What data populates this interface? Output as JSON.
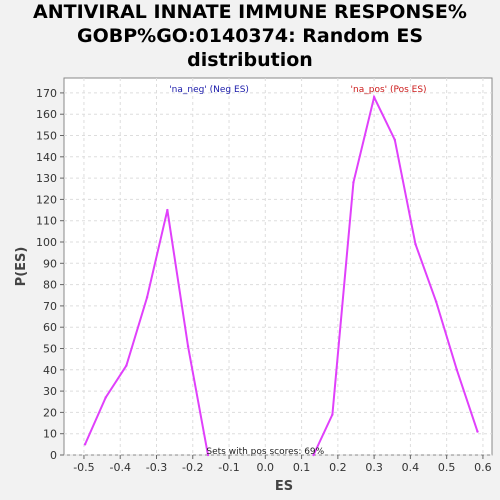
{
  "chart_data": {
    "type": "line",
    "title_lines": [
      "ANTIVIRAL INNATE IMMUNE RESPONSE%",
      "GOBP%GO:0140374: Random ES",
      "distribution"
    ],
    "xlabel": "ES",
    "ylabel": "P(ES)",
    "xlim": [
      -0.555,
      0.625
    ],
    "ylim": [
      0,
      177
    ],
    "x_ticks": [
      -0.5,
      -0.4,
      -0.3,
      -0.2,
      -0.1,
      0.0,
      0.1,
      0.2,
      0.3,
      0.4,
      0.5,
      0.6
    ],
    "x_tick_labels": [
      "-0.5",
      "-0.4",
      "-0.3",
      "-0.2",
      "-0.1",
      "0.0",
      "0.1",
      "0.2",
      "0.3",
      "0.4",
      "0.5",
      "0.6"
    ],
    "y_ticks": [
      0,
      10,
      20,
      30,
      40,
      50,
      60,
      70,
      80,
      90,
      100,
      110,
      120,
      130,
      140,
      150,
      160,
      170
    ],
    "grid": true,
    "series": [
      {
        "name": "'na_neg' (Neg ES)",
        "color": "#e040fb",
        "x": [
          -0.497,
          -0.44,
          -0.383,
          -0.326,
          -0.27,
          -0.213,
          -0.158
        ],
        "y": [
          5,
          27,
          42,
          74,
          115,
          51,
          0
        ]
      },
      {
        "name": "'na_pos' (Pos ES)",
        "color": "#e040fb",
        "x": [
          0.133,
          0.185,
          0.243,
          0.3,
          0.357,
          0.414,
          0.471,
          0.528,
          0.585
        ],
        "y": [
          0,
          19,
          128,
          168,
          148,
          99,
          72,
          40,
          11
        ]
      }
    ],
    "legend": [
      {
        "label": "'na_neg' (Neg ES)",
        "color": "#1a1aaa"
      },
      {
        "label": "'na_pos' (Pos ES)",
        "color": "#cc1a1a"
      }
    ],
    "annotation": "Sets with pos scores: 69%"
  }
}
